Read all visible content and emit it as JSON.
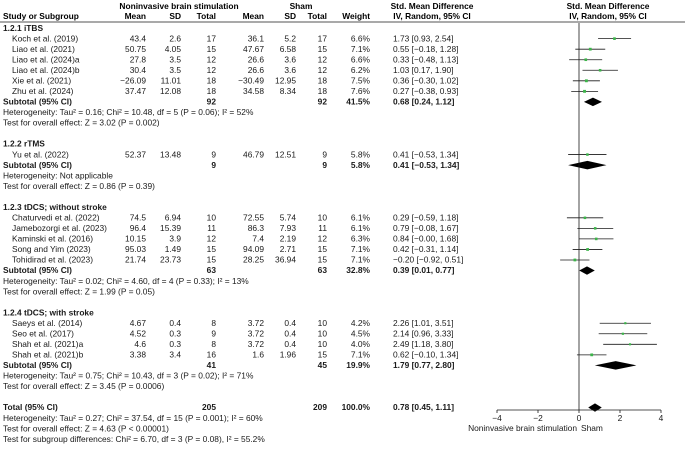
{
  "header": {
    "group_nibs": "Noninvasive brain stimulation",
    "group_sham": "Sham",
    "group_smd": "Std. Mean Difference",
    "col_study": "Study or Subgroup",
    "col_mean": "Mean",
    "col_sd": "SD",
    "col_total": "Total",
    "col_weight": "Weight",
    "col_ci": "IV, Random, 95% CI",
    "col_plot": "IV, Random, 95% CI"
  },
  "rows": [
    {
      "type": "heading",
      "study": "1.2.1 iTBS"
    },
    {
      "type": "study",
      "study": "Koch et al. (2019)",
      "m1": "43.4",
      "s1": "2.6",
      "n1": "17",
      "m2": "36.1",
      "s2": "5.2",
      "n2": "17",
      "weight": "6.6%",
      "ci": "1.73 [0.93, 2.54]"
    },
    {
      "type": "study",
      "study": "Liao et al. (2021)",
      "m1": "50.75",
      "s1": "4.05",
      "n1": "15",
      "m2": "47.67",
      "s2": "6.58",
      "n2": "15",
      "weight": "7.1%",
      "ci": "0.55 [−0.18, 1.28]"
    },
    {
      "type": "study",
      "study": "Liao et al. (2024)a",
      "m1": "27.8",
      "s1": "3.5",
      "n1": "12",
      "m2": "26.6",
      "s2": "3.6",
      "n2": "12",
      "weight": "6.6%",
      "ci": "0.33 [−0.48, 1.13]"
    },
    {
      "type": "study",
      "study": "Liao et al. (2024)b",
      "m1": "30.4",
      "s1": "3.5",
      "n1": "12",
      "m2": "26.6",
      "s2": "3.6",
      "n2": "12",
      "weight": "6.2%",
      "ci": "1.03 [0.17, 1.90]"
    },
    {
      "type": "study",
      "study": "Xie et al. (2021)",
      "m1": "−26.09",
      "s1": "11.01",
      "n1": "18",
      "m2": "−30.49",
      "s2": "12.95",
      "n2": "18",
      "weight": "7.5%",
      "ci": "0.36 [−0.30, 1.02]"
    },
    {
      "type": "study",
      "study": "Zhu et al. (2024)",
      "m1": "37.47",
      "s1": "12.08",
      "n1": "18",
      "m2": "34.58",
      "s2": "8.34",
      "n2": "18",
      "weight": "7.6%",
      "ci": "0.27 [−0.38, 0.93]"
    },
    {
      "type": "subtotal",
      "study": "Subtotal (95% CI)",
      "n1": "92",
      "n2": "92",
      "weight": "41.5%",
      "ci": "0.68 [0.24, 1.12]"
    },
    {
      "type": "note",
      "study": "Heterogeneity: Tau² = 0.16; Chi² = 10.48, df = 5 (P = 0.06); I² = 52%"
    },
    {
      "type": "note",
      "study": "Test for overall effect: Z = 3.02 (P = 0.002)"
    },
    {
      "type": "blank"
    },
    {
      "type": "heading",
      "study": "1.2.2 rTMS"
    },
    {
      "type": "study",
      "study": "Yu et al. (2022)",
      "m1": "52.37",
      "s1": "13.48",
      "n1": "9",
      "m2": "46.79",
      "s2": "12.51",
      "n2": "9",
      "weight": "5.8%",
      "ci": "0.41 [−0.53, 1.34]"
    },
    {
      "type": "subtotal",
      "study": "Subtotal (95% CI)",
      "n1": "9",
      "n2": "9",
      "weight": "5.8%",
      "ci": "0.41 [−0.53, 1.34]"
    },
    {
      "type": "note",
      "study": "Heterogeneity: Not applicable"
    },
    {
      "type": "note",
      "study": "Test for overall effect: Z = 0.86 (P = 0.39)"
    },
    {
      "type": "blank"
    },
    {
      "type": "heading",
      "study": "1.2.3 tDCS; without stroke"
    },
    {
      "type": "study",
      "study": "Chaturvedi et al. (2022)",
      "m1": "74.5",
      "s1": "6.94",
      "n1": "10",
      "m2": "72.55",
      "s2": "5.74",
      "n2": "10",
      "weight": "6.1%",
      "ci": "0.29 [−0.59, 1.18]"
    },
    {
      "type": "study",
      "study": "Jamebozorgi et al. (2023)",
      "m1": "96.4",
      "s1": "15.39",
      "n1": "11",
      "m2": "86.3",
      "s2": "7.93",
      "n2": "11",
      "weight": "6.1%",
      "ci": "0.79 [−0.08, 1.67]"
    },
    {
      "type": "study",
      "study": "Kaminski et al. (2016)",
      "m1": "10.15",
      "s1": "3.9",
      "n1": "12",
      "m2": "7.4",
      "s2": "2.19",
      "n2": "12",
      "weight": "6.3%",
      "ci": "0.84 [−0.00, 1.68]"
    },
    {
      "type": "study",
      "study": "Song and Yim (2023)",
      "m1": "95.03",
      "s1": "1.49",
      "n1": "15",
      "m2": "94.09",
      "s2": "2.71",
      "n2": "15",
      "weight": "7.1%",
      "ci": "0.42 [−0.31, 1.14]"
    },
    {
      "type": "study",
      "study": "Tohidirad et al. (2023)",
      "m1": "21.74",
      "s1": "23.73",
      "n1": "15",
      "m2": "28.25",
      "s2": "36.94",
      "n2": "15",
      "weight": "7.1%",
      "ci": "−0.20 [−0.92, 0.51]"
    },
    {
      "type": "subtotal",
      "study": "Subtotal (95% CI)",
      "n1": "63",
      "n2": "63",
      "weight": "32.8%",
      "ci": "0.39 [0.01, 0.77]"
    },
    {
      "type": "note",
      "study": "Heterogeneity: Tau² = 0.02; Chi² = 4.60, df = 4 (P = 0.33); I² = 13%"
    },
    {
      "type": "note",
      "study": "Test for overall effect: Z = 1.99 (P = 0.05)"
    },
    {
      "type": "blank"
    },
    {
      "type": "heading",
      "study": "1.2.4 tDCS; with stroke"
    },
    {
      "type": "study",
      "study": "Saeys et al. (2014)",
      "m1": "4.67",
      "s1": "0.4",
      "n1": "8",
      "m2": "3.72",
      "s2": "0.4",
      "n2": "10",
      "weight": "4.2%",
      "ci": "2.26 [1.01, 3.51]"
    },
    {
      "type": "study",
      "study": "Seo et al. (2017)",
      "m1": "4.52",
      "s1": "0.3",
      "n1": "9",
      "m2": "3.72",
      "s2": "0.4",
      "n2": "10",
      "weight": "4.5%",
      "ci": "2.14 [0.96, 3.33]"
    },
    {
      "type": "study",
      "study": "Shah et al. (2021)a",
      "m1": "4.6",
      "s1": "0.3",
      "n1": "8",
      "m2": "3.72",
      "s2": "0.4",
      "n2": "10",
      "weight": "4.0%",
      "ci": "2.49 [1.18, 3.80]"
    },
    {
      "type": "study",
      "study": "Shah et al. (2021)b",
      "m1": "3.38",
      "s1": "3.4",
      "n1": "16",
      "m2": "1.6",
      "s2": "1.96",
      "n2": "15",
      "weight": "7.1%",
      "ci": "0.62 [−0.10, 1.34]"
    },
    {
      "type": "subtotal",
      "study": "Subtotal (95% CI)",
      "n1": "41",
      "n2": "45",
      "weight": "19.9%",
      "ci": "1.79 [0.77, 2.80]"
    },
    {
      "type": "note",
      "study": "Heterogeneity: Tau² = 0.75; Chi² = 10.43, df = 3 (P = 0.02); I² = 71%"
    },
    {
      "type": "note",
      "study": "Test for overall effect: Z = 3.45 (P = 0.0006)"
    },
    {
      "type": "blank"
    },
    {
      "type": "total",
      "study": "Total (95% CI)",
      "n1": "205",
      "n2": "209",
      "weight": "100.0%",
      "ci": "0.78 [0.45, 1.11]"
    },
    {
      "type": "note",
      "study": "Heterogeneity: Tau² = 0.27; Chi² = 37.54, df = 15 (P = 0.001); I² = 60%"
    },
    {
      "type": "note",
      "study": "Test for overall effect: Z = 4.63 (P < 0.00001)"
    },
    {
      "type": "note",
      "study": "Test for subgroup differences: Chi² = 6.70, df = 3 (P = 0.08), I² = 55.2%"
    }
  ],
  "chart_data": {
    "type": "forest",
    "xlim": [
      -4,
      4
    ],
    "ticks": [
      -4,
      -2,
      0,
      2,
      4
    ],
    "tick_labels": [
      "−4",
      "−2",
      "0",
      "2",
      "4"
    ],
    "favours_left": "Noninvasive brain stimulation",
    "favours_right": "Sham",
    "grid": false,
    "studies": [
      {
        "study": "Koch et al. (2019)",
        "smd": 1.73,
        "lo": 0.93,
        "hi": 2.54,
        "weight": 6.6
      },
      {
        "study": "Liao et al. (2021)",
        "smd": 0.55,
        "lo": -0.18,
        "hi": 1.28,
        "weight": 7.1
      },
      {
        "study": "Liao et al. (2024)a",
        "smd": 0.33,
        "lo": -0.48,
        "hi": 1.13,
        "weight": 6.6
      },
      {
        "study": "Liao et al. (2024)b",
        "smd": 1.03,
        "lo": 0.17,
        "hi": 1.9,
        "weight": 6.2
      },
      {
        "study": "Xie et al. (2021)",
        "smd": 0.36,
        "lo": -0.3,
        "hi": 1.02,
        "weight": 7.5
      },
      {
        "study": "Zhu et al. (2024)",
        "smd": 0.27,
        "lo": -0.38,
        "hi": 0.93,
        "weight": 7.6
      },
      {
        "study": "Yu et al. (2022)",
        "smd": 0.41,
        "lo": -0.53,
        "hi": 1.34,
        "weight": 5.8
      },
      {
        "study": "Chaturvedi et al. (2022)",
        "smd": 0.29,
        "lo": -0.59,
        "hi": 1.18,
        "weight": 6.1
      },
      {
        "study": "Jamebozorgi et al. (2023)",
        "smd": 0.79,
        "lo": -0.08,
        "hi": 1.67,
        "weight": 6.1
      },
      {
        "study": "Kaminski et al. (2016)",
        "smd": 0.84,
        "lo": -0.0,
        "hi": 1.68,
        "weight": 6.3
      },
      {
        "study": "Song and Yim (2023)",
        "smd": 0.42,
        "lo": -0.31,
        "hi": 1.14,
        "weight": 7.1
      },
      {
        "study": "Tohidirad et al. (2023)",
        "smd": -0.2,
        "lo": -0.92,
        "hi": 0.51,
        "weight": 7.1
      },
      {
        "study": "Saeys et al. (2014)",
        "smd": 2.26,
        "lo": 1.01,
        "hi": 3.51,
        "weight": 4.2
      },
      {
        "study": "Seo et al. (2017)",
        "smd": 2.14,
        "lo": 0.96,
        "hi": 3.33,
        "weight": 4.5
      },
      {
        "study": "Shah et al. (2021)a",
        "smd": 2.49,
        "lo": 1.18,
        "hi": 3.8,
        "weight": 4.0
      },
      {
        "study": "Shah et al. (2021)b",
        "smd": 0.62,
        "lo": -0.1,
        "hi": 1.34,
        "weight": 7.1
      }
    ],
    "pooled": [
      {
        "study": "Subtotal (95% CI)",
        "smd": 0.68,
        "lo": 0.24,
        "hi": 1.12
      },
      {
        "study": "Subtotal (95% CI)",
        "smd": 0.41,
        "lo": -0.53,
        "hi": 1.34
      },
      {
        "study": "Subtotal (95% CI)",
        "smd": 0.39,
        "lo": 0.01,
        "hi": 0.77
      },
      {
        "study": "Subtotal (95% CI)",
        "smd": 1.79,
        "lo": 0.77,
        "hi": 2.8
      },
      {
        "study": "Total (95% CI)",
        "smd": 0.78,
        "lo": 0.45,
        "hi": 1.11
      }
    ],
    "colors": {
      "point": "#3cb54a",
      "line": "#1a1a1a",
      "diamond": "#000000"
    }
  }
}
